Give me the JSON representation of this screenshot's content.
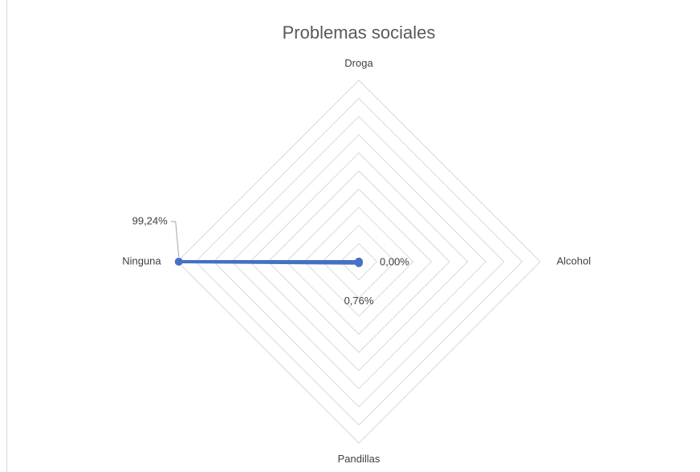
{
  "chart_data": {
    "type": "radar",
    "title": "Problemas sociales",
    "categories": [
      "Droga",
      "Alcohol",
      "Pandillas",
      "Ninguna"
    ],
    "series": [
      {
        "color": "#4472c4",
        "values": [
          0,
          0,
          0.76,
          99.24
        ],
        "value_labels": [
          null,
          "0,00%",
          "0,76%",
          "99,24%"
        ]
      }
    ],
    "ylim": [
      0,
      100
    ],
    "yticks": [
      0,
      10,
      20,
      30,
      40,
      50,
      60,
      70,
      80,
      90,
      100
    ],
    "grid": true
  }
}
